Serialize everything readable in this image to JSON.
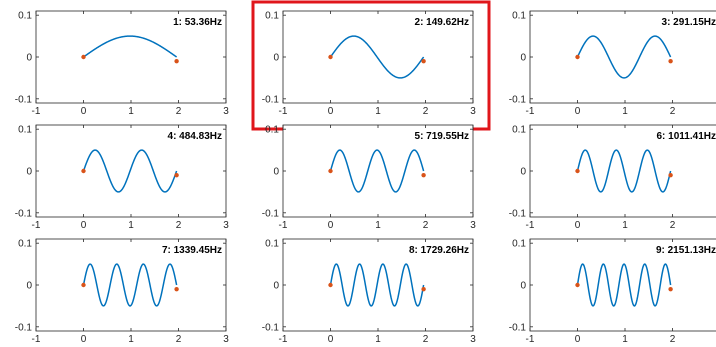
{
  "figure": {
    "highlight_color": "#e0161b",
    "highlighted_panel": 1
  },
  "chart_data": [
    {
      "type": "line",
      "title": "1: 53.36Hz",
      "mode": 1,
      "xlim": [
        -1,
        3
      ],
      "ylim": [
        -0.11,
        0.11
      ],
      "xticks": [
        "-1",
        "0",
        "1",
        "2",
        "3"
      ],
      "yticks": [
        "0.1",
        "0",
        "-0.1"
      ],
      "amplitude": 0.05,
      "span": [
        0,
        1.96
      ],
      "endpoints": [
        {
          "x": 0,
          "y": 0
        },
        {
          "x": 1.96,
          "y": -0.01
        }
      ],
      "line_color": "#0072bd",
      "endpoint_color": "#d95319"
    },
    {
      "type": "line",
      "title": "2: 149.62Hz",
      "mode": 2,
      "xlim": [
        -1,
        3
      ],
      "ylim": [
        -0.11,
        0.11
      ],
      "xticks": [
        "-1",
        "0",
        "1",
        "2",
        "3"
      ],
      "yticks": [
        "0.1",
        "0",
        "-0.1"
      ],
      "amplitude": 0.05,
      "span": [
        0,
        1.96
      ],
      "endpoints": [
        {
          "x": 0,
          "y": 0
        },
        {
          "x": 1.96,
          "y": -0.01
        }
      ],
      "line_color": "#0072bd",
      "endpoint_color": "#d95319"
    },
    {
      "type": "line",
      "title": "3: 291.15Hz",
      "mode": 3,
      "xlim": [
        -1,
        3
      ],
      "ylim": [
        -0.11,
        0.11
      ],
      "xticks": [
        "-1",
        "0",
        "1",
        "2",
        "3"
      ],
      "yticks": [
        "0.1",
        "0",
        "-0.1"
      ],
      "amplitude": 0.05,
      "span": [
        0,
        1.96
      ],
      "endpoints": [
        {
          "x": 0,
          "y": 0
        },
        {
          "x": 1.96,
          "y": -0.01
        }
      ],
      "line_color": "#0072bd",
      "endpoint_color": "#d95319"
    },
    {
      "type": "line",
      "title": "4: 484.83Hz",
      "mode": 4,
      "xlim": [
        -1,
        3
      ],
      "ylim": [
        -0.11,
        0.11
      ],
      "xticks": [
        "-1",
        "0",
        "1",
        "2",
        "3"
      ],
      "yticks": [
        "0.1",
        "0",
        "-0.1"
      ],
      "amplitude": 0.05,
      "span": [
        0,
        1.96
      ],
      "endpoints": [
        {
          "x": 0,
          "y": 0
        },
        {
          "x": 1.96,
          "y": -0.01
        }
      ],
      "line_color": "#0072bd",
      "endpoint_color": "#d95319"
    },
    {
      "type": "line",
      "title": "5: 719.55Hz",
      "mode": 5,
      "xlim": [
        -1,
        3
      ],
      "ylim": [
        -0.11,
        0.11
      ],
      "xticks": [
        "-1",
        "0",
        "1",
        "2",
        "3"
      ],
      "yticks": [
        "0.1",
        "0",
        "-0.1"
      ],
      "amplitude": 0.05,
      "span": [
        0,
        1.96
      ],
      "endpoints": [
        {
          "x": 0,
          "y": 0
        },
        {
          "x": 1.96,
          "y": -0.01
        }
      ],
      "line_color": "#0072bd",
      "endpoint_color": "#d95319"
    },
    {
      "type": "line",
      "title": "6: 1011.41Hz",
      "mode": 6,
      "xlim": [
        -1,
        3
      ],
      "ylim": [
        -0.11,
        0.11
      ],
      "xticks": [
        "-1",
        "0",
        "1",
        "2",
        "3"
      ],
      "yticks": [
        "0.1",
        "0",
        "-0.1"
      ],
      "amplitude": 0.05,
      "span": [
        0,
        1.96
      ],
      "endpoints": [
        {
          "x": 0,
          "y": 0
        },
        {
          "x": 1.96,
          "y": -0.01
        }
      ],
      "line_color": "#0072bd",
      "endpoint_color": "#d95319"
    },
    {
      "type": "line",
      "title": "7: 1339.45Hz",
      "mode": 7,
      "xlim": [
        -1,
        3
      ],
      "ylim": [
        -0.11,
        0.11
      ],
      "xticks": [
        "-1",
        "0",
        "1",
        "2",
        "3"
      ],
      "yticks": [
        "0.1",
        "0",
        "-0.1"
      ],
      "amplitude": 0.05,
      "span": [
        0,
        1.96
      ],
      "endpoints": [
        {
          "x": 0,
          "y": 0
        },
        {
          "x": 1.96,
          "y": -0.01
        }
      ],
      "line_color": "#0072bd",
      "endpoint_color": "#d95319"
    },
    {
      "type": "line",
      "title": "8: 1729.26Hz",
      "mode": 8,
      "xlim": [
        -1,
        3
      ],
      "ylim": [
        -0.11,
        0.11
      ],
      "xticks": [
        "-1",
        "0",
        "1",
        "2",
        "3"
      ],
      "yticks": [
        "0.1",
        "0",
        "-0.1"
      ],
      "amplitude": 0.05,
      "span": [
        0,
        1.96
      ],
      "endpoints": [
        {
          "x": 0,
          "y": 0
        },
        {
          "x": 1.96,
          "y": -0.01
        }
      ],
      "line_color": "#0072bd",
      "endpoint_color": "#d95319"
    },
    {
      "type": "line",
      "title": "9: 2151.13Hz",
      "mode": 9,
      "xlim": [
        -1,
        3
      ],
      "ylim": [
        -0.11,
        0.11
      ],
      "xticks": [
        "-1",
        "0",
        "1",
        "2",
        "3"
      ],
      "yticks": [
        "0.1",
        "0",
        "-0.1"
      ],
      "amplitude": 0.05,
      "span": [
        0,
        1.96
      ],
      "endpoints": [
        {
          "x": 0,
          "y": 0
        },
        {
          "x": 1.96,
          "y": -0.01
        }
      ],
      "line_color": "#0072bd",
      "endpoint_color": "#d95319"
    }
  ]
}
